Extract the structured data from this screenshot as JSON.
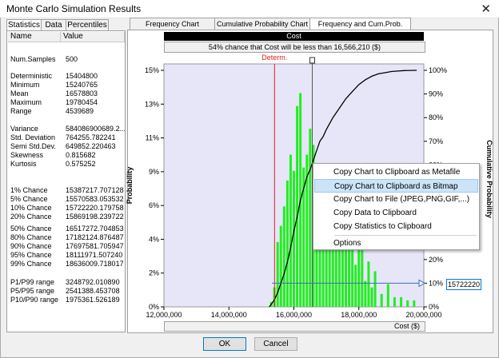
{
  "window": {
    "title": "Monte Carlo Simulation Results",
    "close_glyph": "✕"
  },
  "left_tabs": [
    "Statistics",
    "Data",
    "Percentiles"
  ],
  "stats_table": {
    "headers": [
      "Name",
      "Value"
    ],
    "rows": [
      {
        "name": "Num.Samples",
        "value": "500"
      },
      {
        "name": "Deterministic",
        "value": "15404800"
      },
      {
        "name": "Minimum",
        "value": "15240765"
      },
      {
        "name": "Mean",
        "value": "16578803"
      },
      {
        "name": "Maximum",
        "value": "19780454"
      },
      {
        "name": "Range",
        "value": "4539689"
      },
      {
        "name": "Variance",
        "value": "584086900689.2..."
      },
      {
        "name": "Std. Deviation",
        "value": "764255.782241"
      },
      {
        "name": "Semi Std.Dev.",
        "value": "649852.220463"
      },
      {
        "name": "Skewness",
        "value": "0.815682"
      },
      {
        "name": "Kurtosis",
        "value": "0.575252"
      },
      {
        "name": "1% Chance",
        "value": "15387217.707128"
      },
      {
        "name": "5% Chance",
        "value": "15570583.053532"
      },
      {
        "name": "10% Chance",
        "value": "15722220.179758"
      },
      {
        "name": "20% Chance",
        "value": "15869198.239722"
      },
      {
        "name": "50% Chance",
        "value": "16517272.704853"
      },
      {
        "name": "80% Chance",
        "value": "17182124.876487"
      },
      {
        "name": "90% Chance",
        "value": "17697581.705947"
      },
      {
        "name": "95% Chance",
        "value": "18111971.507240"
      },
      {
        "name": "99% Chance",
        "value": "18636009.718017"
      },
      {
        "name": "P1/P99 range",
        "value": "3248792.010890"
      },
      {
        "name": "P5/P95 range",
        "value": "2541388.453708"
      },
      {
        "name": "P10/P90 range",
        "value": "1975361.526189"
      }
    ]
  },
  "chart_tabs": [
    "Frequency Chart",
    "Cumulative Probability Chart",
    "Frequency and Cum.Prob. Charts"
  ],
  "chart_header": {
    "title": "Cost",
    "chance_text": "54% chance that Cost will be less than 16,566,210 ($)"
  },
  "chart_data": {
    "type": "bar",
    "x_label": "Cost ($)",
    "y_left_label": "Probability",
    "y_right_label": "Cumulative Probability",
    "x_ticks": [
      "12,000,000",
      "14,000,000",
      "16,000,000",
      "18,000,000",
      "20,000,000"
    ],
    "x_range": [
      12000000,
      20000000
    ],
    "y_left_ticks": [
      "0%",
      "2%",
      "4%",
      "6%",
      "9%",
      "11%",
      "13%",
      "15%"
    ],
    "y_left_range": [
      0,
      0.15
    ],
    "y_right_ticks": [
      "0%",
      "10%",
      "20%",
      "30%",
      "40%",
      "50%",
      "60%",
      "70%",
      "80%",
      "90%",
      "100%"
    ],
    "y_right_range": [
      0,
      1
    ],
    "determ_label": "Determ.",
    "determ_value": 15404800,
    "marker_value": 16566210,
    "percentile_value_label": "15722220",
    "percentile_cum": 0.1,
    "bar_color": "#22ee22",
    "background_color": "#e6e6f8",
    "bins_x": [
      15300000,
      15400000,
      15500000,
      15600000,
      15700000,
      15800000,
      15900000,
      16000000,
      16100000,
      16200000,
      16300000,
      16400000,
      16500000,
      16600000,
      16700000,
      16800000,
      16900000,
      17000000,
      17100000,
      17200000,
      17300000,
      17400000,
      17500000,
      17600000,
      17700000,
      17800000,
      17900000,
      18000000,
      18100000,
      18200000,
      18300000,
      18400000,
      18500000,
      18700000,
      18900000,
      19100000,
      19300000,
      19500000,
      19700000
    ],
    "bins_y": [
      0.003,
      0.012,
      0.04,
      0.05,
      0.062,
      0.078,
      0.094,
      0.084,
      0.124,
      0.132,
      0.086,
      0.094,
      0.11,
      0.1,
      0.072,
      0.088,
      0.06,
      0.082,
      0.064,
      0.054,
      0.06,
      0.052,
      0.062,
      0.044,
      0.05,
      0.038,
      0.026,
      0.04,
      0.036,
      0.016,
      0.028,
      0.012,
      0.022,
      0.008,
      0.014,
      0.006,
      0.006,
      0.004,
      0.004
    ],
    "cum_x": [
      15240765,
      15300000,
      15400000,
      15500000,
      15600000,
      15700000,
      15800000,
      15900000,
      16000000,
      16100000,
      16200000,
      16300000,
      16400000,
      16500000,
      16600000,
      16700000,
      16800000,
      16900000,
      17000000,
      17200000,
      17400000,
      17600000,
      17800000,
      18000000,
      18200000,
      18400000,
      18600000,
      18800000,
      19000000,
      19200000,
      19400000,
      19780454
    ],
    "cum_y": [
      0,
      0.01,
      0.03,
      0.06,
      0.1,
      0.14,
      0.19,
      0.25,
      0.32,
      0.38,
      0.45,
      0.5,
      0.55,
      0.58,
      0.62,
      0.66,
      0.7,
      0.72,
      0.75,
      0.8,
      0.84,
      0.88,
      0.91,
      0.94,
      0.96,
      0.975,
      0.985,
      0.99,
      0.995,
      0.997,
      0.999,
      1
    ]
  },
  "context_menu": {
    "items": [
      "Copy Chart to Clipboard as Metafile",
      "Copy Chart to Clipboard as Bitmap",
      "Copy Chart to File (JPEG,PNG,GIF,...)",
      "Copy Data to Clipboard",
      "Copy Statistics to Clipboard",
      "Options"
    ],
    "highlighted_index": 1
  },
  "buttons": {
    "ok": "OK",
    "cancel": "Cancel"
  }
}
